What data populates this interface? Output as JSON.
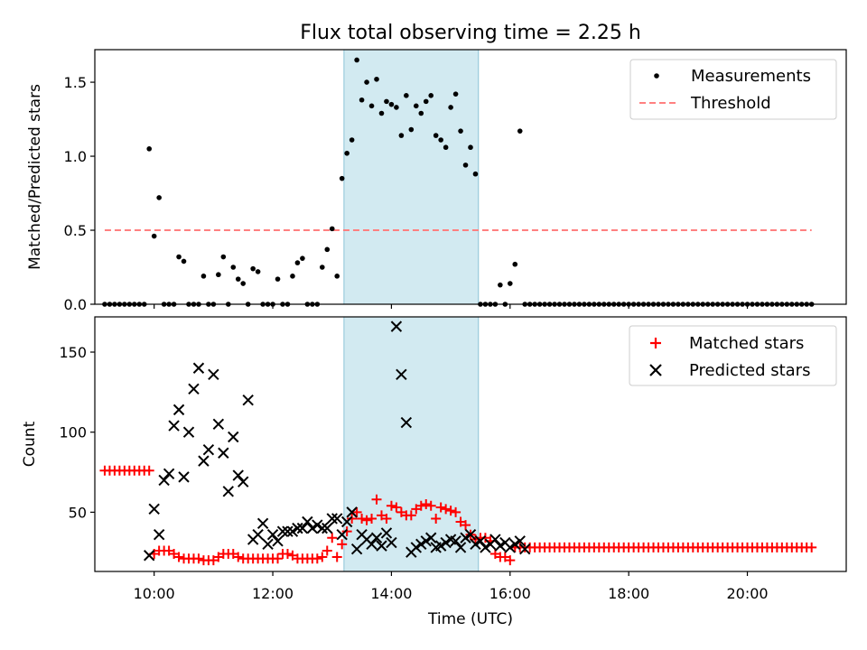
{
  "chart_data": [
    {
      "type": "scatter",
      "title": "Flux total observing time = 2.25 h",
      "ylabel": "Matched/Predicted stars",
      "xlabel": "",
      "ylim": [
        0.0,
        1.72
      ],
      "yticks": [
        0.0,
        0.5,
        1.0,
        1.5
      ],
      "ytick_labels": [
        "0.0",
        "0.5",
        "1.0",
        "1.5"
      ],
      "xlim": [
        "09:00",
        "21:40"
      ],
      "highlight_span": [
        "13:12",
        "15:28"
      ],
      "highlight_color": "#add8e6",
      "legend_position": "top-right",
      "series": [
        {
          "name": "Measurements",
          "color": "#000000",
          "marker": "dot",
          "x": [
            "09:10",
            "09:15",
            "09:20",
            "09:25",
            "09:30",
            "09:35",
            "09:40",
            "09:45",
            "09:50",
            "09:55",
            "10:00",
            "10:05",
            "10:10",
            "10:15",
            "10:20",
            "10:25",
            "10:30",
            "10:35",
            "10:40",
            "10:45",
            "10:50",
            "10:55",
            "11:00",
            "11:05",
            "11:10",
            "11:15",
            "11:20",
            "11:25",
            "11:30",
            "11:35",
            "11:40",
            "11:45",
            "11:50",
            "11:55",
            "12:00",
            "12:05",
            "12:10",
            "12:15",
            "12:20",
            "12:25",
            "12:30",
            "12:35",
            "12:40",
            "12:45",
            "12:50",
            "12:55",
            "13:00",
            "13:05",
            "13:10",
            "13:15",
            "13:20",
            "13:25",
            "13:30",
            "13:35",
            "13:40",
            "13:45",
            "13:50",
            "13:55",
            "14:00",
            "14:05",
            "14:10",
            "14:15",
            "14:20",
            "14:25",
            "14:30",
            "14:35",
            "14:40",
            "14:45",
            "14:50",
            "14:55",
            "15:00",
            "15:05",
            "15:10",
            "15:15",
            "15:20",
            "15:25",
            "15:30",
            "15:35",
            "15:40",
            "15:45",
            "15:50",
            "15:55",
            "16:00",
            "16:05",
            "16:10",
            "16:15",
            "16:20",
            "16:25",
            "16:30",
            "16:35",
            "16:40",
            "16:45",
            "16:50",
            "16:55",
            "17:00",
            "17:05",
            "17:10",
            "17:15",
            "17:20",
            "17:25",
            "17:30",
            "17:35",
            "17:40",
            "17:45",
            "17:50",
            "17:55",
            "18:00",
            "18:05",
            "18:10",
            "18:15",
            "18:20",
            "18:25",
            "18:30",
            "18:35",
            "18:40",
            "18:45",
            "18:50",
            "18:55",
            "19:00",
            "19:05",
            "19:10",
            "19:15",
            "19:20",
            "19:25",
            "19:30",
            "19:35",
            "19:40",
            "19:45",
            "19:50",
            "19:55",
            "20:00",
            "20:05",
            "20:10",
            "20:15",
            "20:20",
            "20:25",
            "20:30",
            "20:35",
            "20:40",
            "20:45",
            "20:50",
            "20:55",
            "21:00",
            "21:05"
          ],
          "y": [
            0.0,
            0.0,
            0.0,
            0.0,
            0.0,
            0.0,
            0.0,
            0.0,
            0.0,
            1.05,
            0.46,
            0.72,
            0.0,
            0.0,
            0.0,
            0.32,
            0.29,
            0.0,
            0.0,
            0.0,
            0.19,
            0.0,
            0.0,
            0.2,
            0.32,
            0.0,
            0.25,
            0.17,
            0.14,
            0.0,
            0.24,
            0.22,
            0.0,
            0.0,
            0.0,
            0.17,
            0.0,
            0.0,
            0.19,
            0.28,
            0.31,
            0.0,
            0.0,
            0.0,
            0.25,
            0.37,
            0.51,
            0.19,
            0.85,
            1.02,
            1.11,
            1.65,
            1.38,
            1.5,
            1.34,
            1.52,
            1.29,
            1.37,
            1.35,
            1.33,
            1.14,
            1.41,
            1.18,
            1.34,
            1.29,
            1.37,
            1.41,
            1.14,
            1.11,
            1.06,
            1.33,
            1.42,
            1.17,
            0.94,
            1.06,
            0.88,
            0.0,
            0.0,
            0.0,
            0.0,
            0.13,
            0.0,
            0.14,
            0.27,
            1.17,
            0.0,
            0.0,
            0.0,
            0.0,
            0.0,
            0.0,
            0.0,
            0.0,
            0.0,
            0.0,
            0.0,
            0.0,
            0.0,
            0.0,
            0.0,
            0.0,
            0.0,
            0.0,
            0.0,
            0.0,
            0.0,
            0.0,
            0.0,
            0.0,
            0.0,
            0.0,
            0.0,
            0.0,
            0.0,
            0.0,
            0.0,
            0.0,
            0.0,
            0.0,
            0.0,
            0.0,
            0.0,
            0.0,
            0.0,
            0.0,
            0.0,
            0.0,
            0.0,
            0.0,
            0.0,
            0.0,
            0.0,
            0.0,
            0.0,
            0.0,
            0.0,
            0.0,
            0.0,
            0.0,
            0.0,
            0.0,
            0.0,
            0.0,
            0.0
          ]
        },
        {
          "name": "Threshold",
          "color": "#ff8080",
          "line_style": "dashed",
          "x": [
            "09:10",
            "21:05"
          ],
          "y": [
            0.5,
            0.5
          ]
        }
      ]
    },
    {
      "type": "scatter",
      "title": "",
      "ylabel": "Count",
      "xlabel": "Time (UTC)",
      "ylim": [
        13,
        172
      ],
      "yticks": [
        50,
        100,
        150
      ],
      "ytick_labels": [
        "50",
        "100",
        "150"
      ],
      "xlim": [
        "09:00",
        "21:40"
      ],
      "xticks": [
        "10:00",
        "12:00",
        "14:00",
        "16:00",
        "18:00",
        "20:00"
      ],
      "xtick_labels": [
        "10:00",
        "12:00",
        "14:00",
        "16:00",
        "18:00",
        "20:00"
      ],
      "highlight_span": [
        "13:12",
        "15:28"
      ],
      "highlight_color": "#add8e6",
      "legend_position": "top-right",
      "series": [
        {
          "name": "Matched stars",
          "color": "#ff0000",
          "marker": "plus",
          "x": [
            "09:10",
            "09:15",
            "09:20",
            "09:25",
            "09:30",
            "09:35",
            "09:40",
            "09:45",
            "09:50",
            "09:55",
            "10:00",
            "10:05",
            "10:10",
            "10:15",
            "10:20",
            "10:25",
            "10:30",
            "10:35",
            "10:40",
            "10:45",
            "10:50",
            "10:55",
            "11:00",
            "11:05",
            "11:10",
            "11:15",
            "11:20",
            "11:25",
            "11:30",
            "11:35",
            "11:40",
            "11:45",
            "11:50",
            "11:55",
            "12:00",
            "12:05",
            "12:10",
            "12:15",
            "12:20",
            "12:25",
            "12:30",
            "12:35",
            "12:40",
            "12:45",
            "12:50",
            "12:55",
            "13:00",
            "13:05",
            "13:10",
            "13:15",
            "13:20",
            "13:25",
            "13:30",
            "13:35",
            "13:40",
            "13:45",
            "13:50",
            "13:55",
            "14:00",
            "14:05",
            "14:10",
            "14:15",
            "14:20",
            "14:25",
            "14:30",
            "14:35",
            "14:40",
            "14:45",
            "14:50",
            "14:55",
            "15:00",
            "15:05",
            "15:10",
            "15:15",
            "15:20",
            "15:25",
            "15:30",
            "15:35",
            "15:40",
            "15:45",
            "15:50",
            "15:55",
            "16:00",
            "16:05",
            "16:10",
            "16:15",
            "16:20",
            "16:25",
            "16:30",
            "16:35",
            "16:40",
            "16:45",
            "16:50",
            "16:55",
            "17:00",
            "17:05",
            "17:10",
            "17:15",
            "17:20",
            "17:25",
            "17:30",
            "17:35",
            "17:40",
            "17:45",
            "17:50",
            "17:55",
            "18:00",
            "18:05",
            "18:10",
            "18:15",
            "18:20",
            "18:25",
            "18:30",
            "18:35",
            "18:40",
            "18:45",
            "18:50",
            "18:55",
            "19:00",
            "19:05",
            "19:10",
            "19:15",
            "19:20",
            "19:25",
            "19:30",
            "19:35",
            "19:40",
            "19:45",
            "19:50",
            "19:55",
            "20:00",
            "20:05",
            "20:10",
            "20:15",
            "20:20",
            "20:25",
            "20:30",
            "20:35",
            "20:40",
            "20:45",
            "20:50",
            "20:55",
            "21:00",
            "21:05"
          ],
          "y": [
            76,
            76,
            76,
            76,
            76,
            76,
            76,
            76,
            76,
            76,
            24,
            26,
            26,
            26,
            24,
            22,
            21,
            21,
            21,
            21,
            20,
            20,
            20,
            22,
            24,
            24,
            24,
            22,
            21,
            21,
            21,
            21,
            21,
            21,
            21,
            21,
            24,
            24,
            23,
            21,
            21,
            21,
            21,
            21,
            22,
            26,
            34,
            22,
            30,
            38,
            46,
            50,
            46,
            45,
            46,
            58,
            48,
            46,
            54,
            53,
            50,
            48,
            48,
            52,
            54,
            55,
            54,
            46,
            53,
            52,
            51,
            50,
            44,
            42,
            36,
            33,
            34,
            34,
            32,
            24,
            22,
            22,
            20,
            28,
            28,
            28,
            28,
            28,
            28,
            28,
            28,
            28,
            28,
            28,
            28,
            28,
            28,
            28,
            28,
            28,
            28,
            28,
            28,
            28,
            28,
            28,
            28,
            28,
            28,
            28,
            28,
            28,
            28,
            28,
            28,
            28,
            28,
            28,
            28,
            28,
            28,
            28,
            28,
            28,
            28,
            28,
            28,
            28,
            28,
            28,
            28,
            28,
            28,
            28,
            28,
            28,
            28,
            28,
            28,
            28,
            28,
            28,
            28,
            28
          ]
        },
        {
          "name": "Predicted stars",
          "color": "#000000",
          "marker": "x",
          "x": [
            "09:55",
            "10:00",
            "10:05",
            "10:10",
            "10:15",
            "10:20",
            "10:25",
            "10:30",
            "10:35",
            "10:40",
            "10:45",
            "10:50",
            "10:55",
            "11:00",
            "11:05",
            "11:10",
            "11:15",
            "11:20",
            "11:25",
            "11:30",
            "11:35",
            "11:40",
            "11:45",
            "11:50",
            "11:55",
            "12:00",
            "12:05",
            "12:10",
            "12:15",
            "12:20",
            "12:25",
            "12:30",
            "12:35",
            "12:40",
            "12:45",
            "12:50",
            "12:55",
            "13:00",
            "13:05",
            "13:10",
            "13:15",
            "13:20",
            "13:25",
            "13:30",
            "13:35",
            "13:40",
            "13:45",
            "13:50",
            "13:55",
            "14:00",
            "14:05",
            "14:10",
            "14:15",
            "14:20",
            "14:25",
            "14:30",
            "14:35",
            "14:40",
            "14:45",
            "14:50",
            "14:55",
            "15:00",
            "15:05",
            "15:10",
            "15:15",
            "15:20",
            "15:25",
            "15:30",
            "15:35",
            "15:40",
            "15:45",
            "15:50",
            "15:55",
            "16:00",
            "16:05",
            "16:10",
            "16:15"
          ],
          "y": [
            23,
            52,
            36,
            70,
            74,
            104,
            114,
            72,
            100,
            127,
            140,
            82,
            89,
            136,
            105,
            87,
            63,
            97,
            73,
            69,
            120,
            33,
            36,
            43,
            30,
            36,
            32,
            38,
            38,
            38,
            40,
            40,
            44,
            40,
            42,
            40,
            40,
            46,
            46,
            36,
            44,
            50,
            27,
            36,
            33,
            30,
            34,
            29,
            37,
            31,
            166,
            136,
            106,
            25,
            28,
            30,
            32,
            34,
            28,
            29,
            31,
            33,
            32,
            28,
            34,
            36,
            30,
            32,
            28,
            30,
            33,
            29,
            31,
            28,
            30,
            32,
            27
          ]
        }
      ]
    }
  ]
}
